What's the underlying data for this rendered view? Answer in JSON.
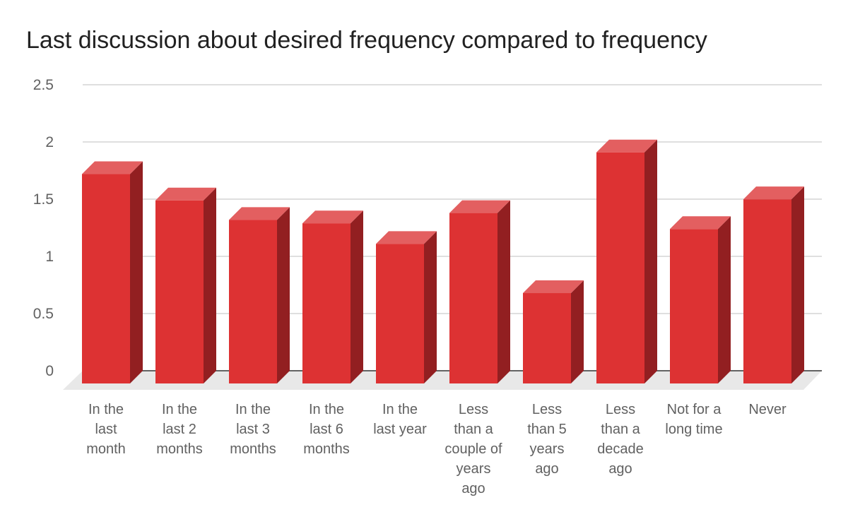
{
  "chart_data": {
    "type": "bar",
    "style": "3d",
    "title": "Last discussion about desired frequency compared to frequency",
    "xlabel": "",
    "ylabel": "",
    "ylim": [
      0,
      2.5
    ],
    "yticks": [
      "0",
      "0.5",
      "1",
      "1.5",
      "2",
      "2.5"
    ],
    "categories": [
      [
        "In the",
        "last",
        "month"
      ],
      [
        "In the",
        "last 2",
        "months"
      ],
      [
        "In the",
        "last 3",
        "months"
      ],
      [
        "In the",
        "last 6",
        "months"
      ],
      [
        "In the",
        "last year"
      ],
      [
        "Less",
        "than a",
        "couple of",
        "years",
        "ago"
      ],
      [
        "Less",
        "than 5",
        "years",
        "ago"
      ],
      [
        "Less",
        "than a",
        "decade",
        "ago"
      ],
      [
        "Not for a",
        "long time"
      ],
      [
        "Never"
      ]
    ],
    "values": [
      1.83,
      1.6,
      1.43,
      1.4,
      1.22,
      1.49,
      0.79,
      2.02,
      1.35,
      1.61
    ],
    "grid": true,
    "legend": "none",
    "colors": {
      "bar_front": "#dd3233",
      "bar_top": "#e35f60",
      "bar_side": "#921f21",
      "grid": "#cccccc",
      "floor": "#e8e8e8",
      "baseline": "#333333"
    }
  }
}
